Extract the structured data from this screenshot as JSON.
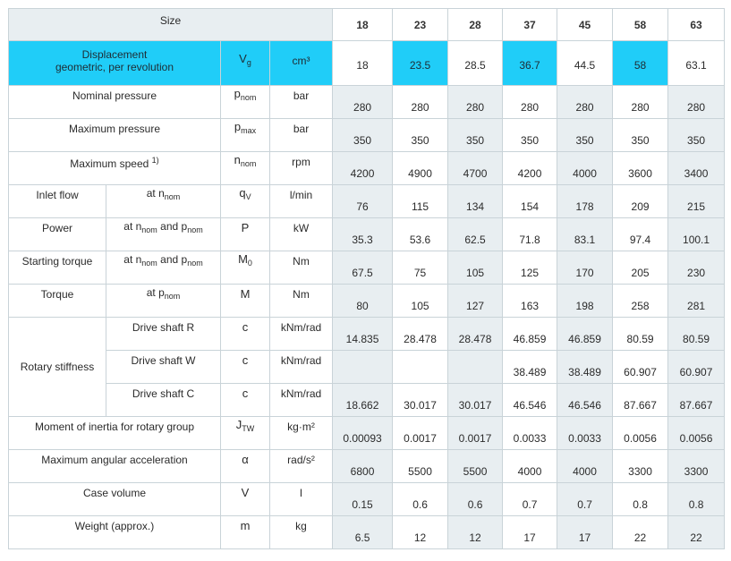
{
  "header": {
    "size_label": "Size",
    "sizes": [
      "18",
      "23",
      "28",
      "37",
      "45",
      "58",
      "63"
    ]
  },
  "rows": {
    "displacement": {
      "label_line1": "Displacement",
      "label_line2": "geometric, per revolution",
      "symbol": "V",
      "symbol_sub": "g",
      "unit": "cm³",
      "values": [
        "18",
        "23.5",
        "28.5",
        "36.7",
        "44.5",
        "58",
        "63.1"
      ]
    },
    "nominal_pressure": {
      "label": "Nominal pressure",
      "symbol": "p",
      "symbol_sub": "nom",
      "unit": "bar",
      "values": [
        "280",
        "280",
        "280",
        "280",
        "280",
        "280",
        "280"
      ]
    },
    "maximum_pressure": {
      "label": "Maximum pressure",
      "symbol": "p",
      "symbol_sub": "max",
      "unit": "bar",
      "values": [
        "350",
        "350",
        "350",
        "350",
        "350",
        "350",
        "350"
      ]
    },
    "maximum_speed": {
      "label": "Maximum speed",
      "footnote": "1)",
      "symbol": "n",
      "symbol_sub": "nom",
      "unit": "rpm",
      "values": [
        "4200",
        "4900",
        "4700",
        "4200",
        "4000",
        "3600",
        "3400"
      ]
    },
    "inlet_flow": {
      "label": "Inlet flow",
      "cond_at": "at n",
      "cond_sub": "nom",
      "symbol": "q",
      "symbol_sub": "V",
      "unit": "l/min",
      "values": [
        "76",
        "115",
        "134",
        "154",
        "178",
        "209",
        "215"
      ]
    },
    "power": {
      "label": "Power",
      "cond_at": "at n",
      "cond_sub1": "nom",
      "cond_and": " and p",
      "cond_sub2": "nom",
      "symbol": "P",
      "unit": "kW",
      "values": [
        "35.3",
        "53.6",
        "62.5",
        "71.8",
        "83.1",
        "97.4",
        "100.1"
      ]
    },
    "starting_torque": {
      "label": "Starting torque",
      "cond_at": "at n",
      "cond_sub1": "nom",
      "cond_and": " and p",
      "cond_sub2": "nom",
      "symbol": "M",
      "symbol_sub": "0",
      "unit": "Nm",
      "values": [
        "67.5",
        "75",
        "105",
        "125",
        "170",
        "205",
        "230"
      ]
    },
    "torque": {
      "label": "Torque",
      "cond_at": "at p",
      "cond_sub": "nom",
      "symbol": "M",
      "unit": "Nm",
      "values": [
        "80",
        "105",
        "127",
        "163",
        "198",
        "258",
        "281"
      ]
    },
    "rotary_stiffness": {
      "label": "Rotary stiffness",
      "sub_rows": [
        {
          "label": "Drive shaft R",
          "symbol": "c",
          "unit": "kNm/rad",
          "values": [
            "14.835",
            "28.478",
            "28.478",
            "46.859",
            "46.859",
            "80.59",
            "80.59"
          ]
        },
        {
          "label": "Drive shaft W",
          "symbol": "c",
          "unit": "kNm/rad",
          "values": [
            "",
            "",
            "",
            "38.489",
            "38.489",
            "60.907",
            "60.907"
          ]
        },
        {
          "label": "Drive shaft C",
          "symbol": "c",
          "unit": "kNm/rad",
          "values": [
            "18.662",
            "30.017",
            "30.017",
            "46.546",
            "46.546",
            "87.667",
            "87.667"
          ]
        }
      ]
    },
    "moment_of_inertia": {
      "label": "Moment of inertia for rotary group",
      "symbol": "J",
      "symbol_sub": "TW",
      "unit": "kg·m²",
      "values": [
        "0.00093",
        "0.0017",
        "0.0017",
        "0.0033",
        "0.0033",
        "0.0056",
        "0.0056"
      ]
    },
    "max_angular_acceleration": {
      "label": "Maximum angular acceleration",
      "symbol": "α",
      "unit": "rad/s²",
      "values": [
        "6800",
        "5500",
        "5500",
        "4000",
        "4000",
        "3300",
        "3300"
      ]
    },
    "case_volume": {
      "label": "Case volume",
      "symbol": "V",
      "unit": "l",
      "values": [
        "0.15",
        "0.6",
        "0.6",
        "0.7",
        "0.7",
        "0.8",
        "0.8"
      ]
    },
    "weight": {
      "label": "Weight (approx.)",
      "symbol": "m",
      "unit": "kg",
      "values": [
        "6.5",
        "12",
        "12",
        "17",
        "17",
        "22",
        "22"
      ]
    }
  },
  "colors": {
    "highlight_cyan": "#20cdf8",
    "value_cell_bg": "#e8eef1",
    "border": "#c9d3d8"
  }
}
